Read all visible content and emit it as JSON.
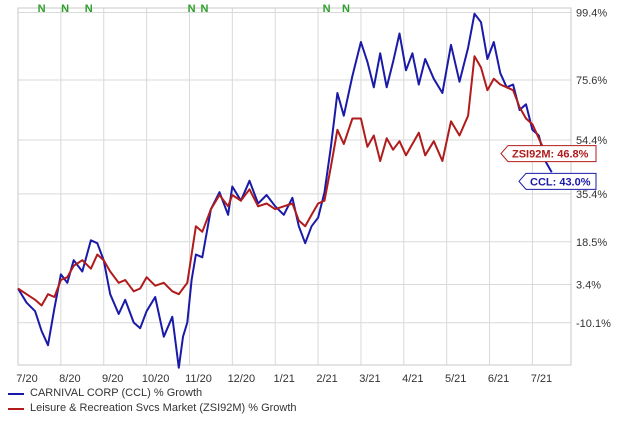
{
  "colors": {
    "ccl": "#1a1aa8",
    "zsi": "#b01c1c",
    "n_marker": "#2ca02c",
    "grid": "#d9d9d9"
  },
  "chart_data": {
    "type": "line",
    "x_labels": [
      "7/20",
      "8/20",
      "9/20",
      "10/20",
      "11/20",
      "12/20",
      "1/21",
      "2/21",
      "3/21",
      "4/21",
      "5/21",
      "6/21",
      "7/21"
    ],
    "y_ticks": [
      "99.4%",
      "75.6%",
      "54.4%",
      "35.4%",
      "18.5%",
      "3.4%",
      "-10.1%"
    ],
    "y_tick_values": [
      99.4,
      75.6,
      54.4,
      35.4,
      18.5,
      3.4,
      -10.1
    ],
    "ylim": [
      -25,
      101
    ],
    "xlim": [
      0,
      12.9
    ],
    "grid": true,
    "legend_position": "bottom-left",
    "n_markers": {
      "label": "N",
      "x": [
        0.55,
        1.1,
        1.65,
        4.05,
        4.35,
        7.2,
        7.65
      ]
    },
    "series": [
      {
        "name": "CARNIVAL CORP (CCL) % Growth",
        "key": "ccl",
        "end_label": "CCL: 43.0%",
        "x": [
          0.0,
          0.2,
          0.4,
          0.55,
          0.7,
          0.85,
          1.0,
          1.15,
          1.3,
          1.5,
          1.7,
          1.85,
          2.0,
          2.15,
          2.35,
          2.5,
          2.7,
          2.85,
          3.0,
          3.2,
          3.4,
          3.6,
          3.75,
          3.85,
          3.95,
          4.05,
          4.15,
          4.3,
          4.5,
          4.7,
          4.9,
          5.0,
          5.2,
          5.4,
          5.6,
          5.8,
          6.0,
          6.2,
          6.4,
          6.55,
          6.7,
          6.85,
          7.0,
          7.15,
          7.3,
          7.45,
          7.6,
          7.8,
          8.0,
          8.15,
          8.3,
          8.45,
          8.6,
          8.75,
          8.9,
          9.05,
          9.2,
          9.35,
          9.5,
          9.7,
          9.9,
          10.1,
          10.3,
          10.5,
          10.65,
          10.8,
          10.95,
          11.1,
          11.25,
          11.4,
          11.55,
          11.7,
          11.85,
          12.0,
          12.15,
          12.3,
          12.45
        ],
        "values": [
          2,
          -3,
          -6,
          -13,
          -18,
          -5,
          7,
          4,
          12,
          8,
          19,
          18,
          12,
          0,
          -7,
          -2,
          -10,
          -12,
          -6,
          -1,
          -15,
          -8,
          -26,
          -15,
          -10,
          5,
          14,
          13,
          30,
          36,
          28,
          38,
          33,
          40,
          32,
          35,
          31,
          28,
          34,
          24,
          18,
          24,
          27,
          36,
          52,
          71,
          63,
          77,
          89,
          82,
          73,
          85,
          73,
          82,
          92,
          79,
          85,
          74,
          83,
          76,
          71,
          88,
          75,
          87,
          99,
          96,
          83,
          89,
          78,
          73,
          74,
          65,
          67,
          58,
          56,
          47,
          43
        ]
      },
      {
        "name": "Leisure & Recreation Svcs Market (ZSI92M) % Growth",
        "key": "zsi",
        "end_label": "ZSI92M: 46.8%",
        "x": [
          0.0,
          0.2,
          0.4,
          0.55,
          0.7,
          0.85,
          1.0,
          1.15,
          1.3,
          1.5,
          1.7,
          1.85,
          2.0,
          2.15,
          2.35,
          2.5,
          2.7,
          2.85,
          3.0,
          3.2,
          3.4,
          3.6,
          3.75,
          3.85,
          3.95,
          4.05,
          4.15,
          4.3,
          4.5,
          4.7,
          4.9,
          5.0,
          5.2,
          5.4,
          5.6,
          5.8,
          6.0,
          6.2,
          6.4,
          6.55,
          6.7,
          6.85,
          7.0,
          7.15,
          7.3,
          7.45,
          7.6,
          7.8,
          8.0,
          8.15,
          8.3,
          8.45,
          8.6,
          8.75,
          8.9,
          9.05,
          9.2,
          9.35,
          9.5,
          9.7,
          9.9,
          10.1,
          10.3,
          10.5,
          10.65,
          10.8,
          10.95,
          11.1,
          11.25,
          11.4,
          11.55,
          11.7,
          11.85,
          12.0,
          12.15,
          12.3,
          12.45
        ],
        "values": [
          2,
          0,
          -2,
          -4,
          0,
          -1,
          5,
          6,
          10,
          12,
          9,
          14,
          12,
          8,
          4,
          5,
          1,
          2,
          6,
          3,
          4,
          1,
          0,
          2,
          4,
          14,
          24,
          22,
          30,
          35,
          31,
          35,
          33,
          37,
          31,
          32,
          30,
          31,
          32,
          26,
          24,
          28,
          32,
          33,
          45,
          58,
          53,
          62,
          62,
          52,
          56,
          47,
          55,
          51,
          54,
          49,
          53,
          57,
          49,
          54,
          47,
          61,
          56,
          63,
          84,
          80,
          72,
          76,
          74,
          73,
          72,
          66,
          62,
          60,
          55,
          50,
          46.8
        ]
      }
    ],
    "legend": [
      "CARNIVAL CORP (CCL) % Growth",
      "Leisure & Recreation Svcs Market (ZSI92M) % Growth"
    ]
  }
}
